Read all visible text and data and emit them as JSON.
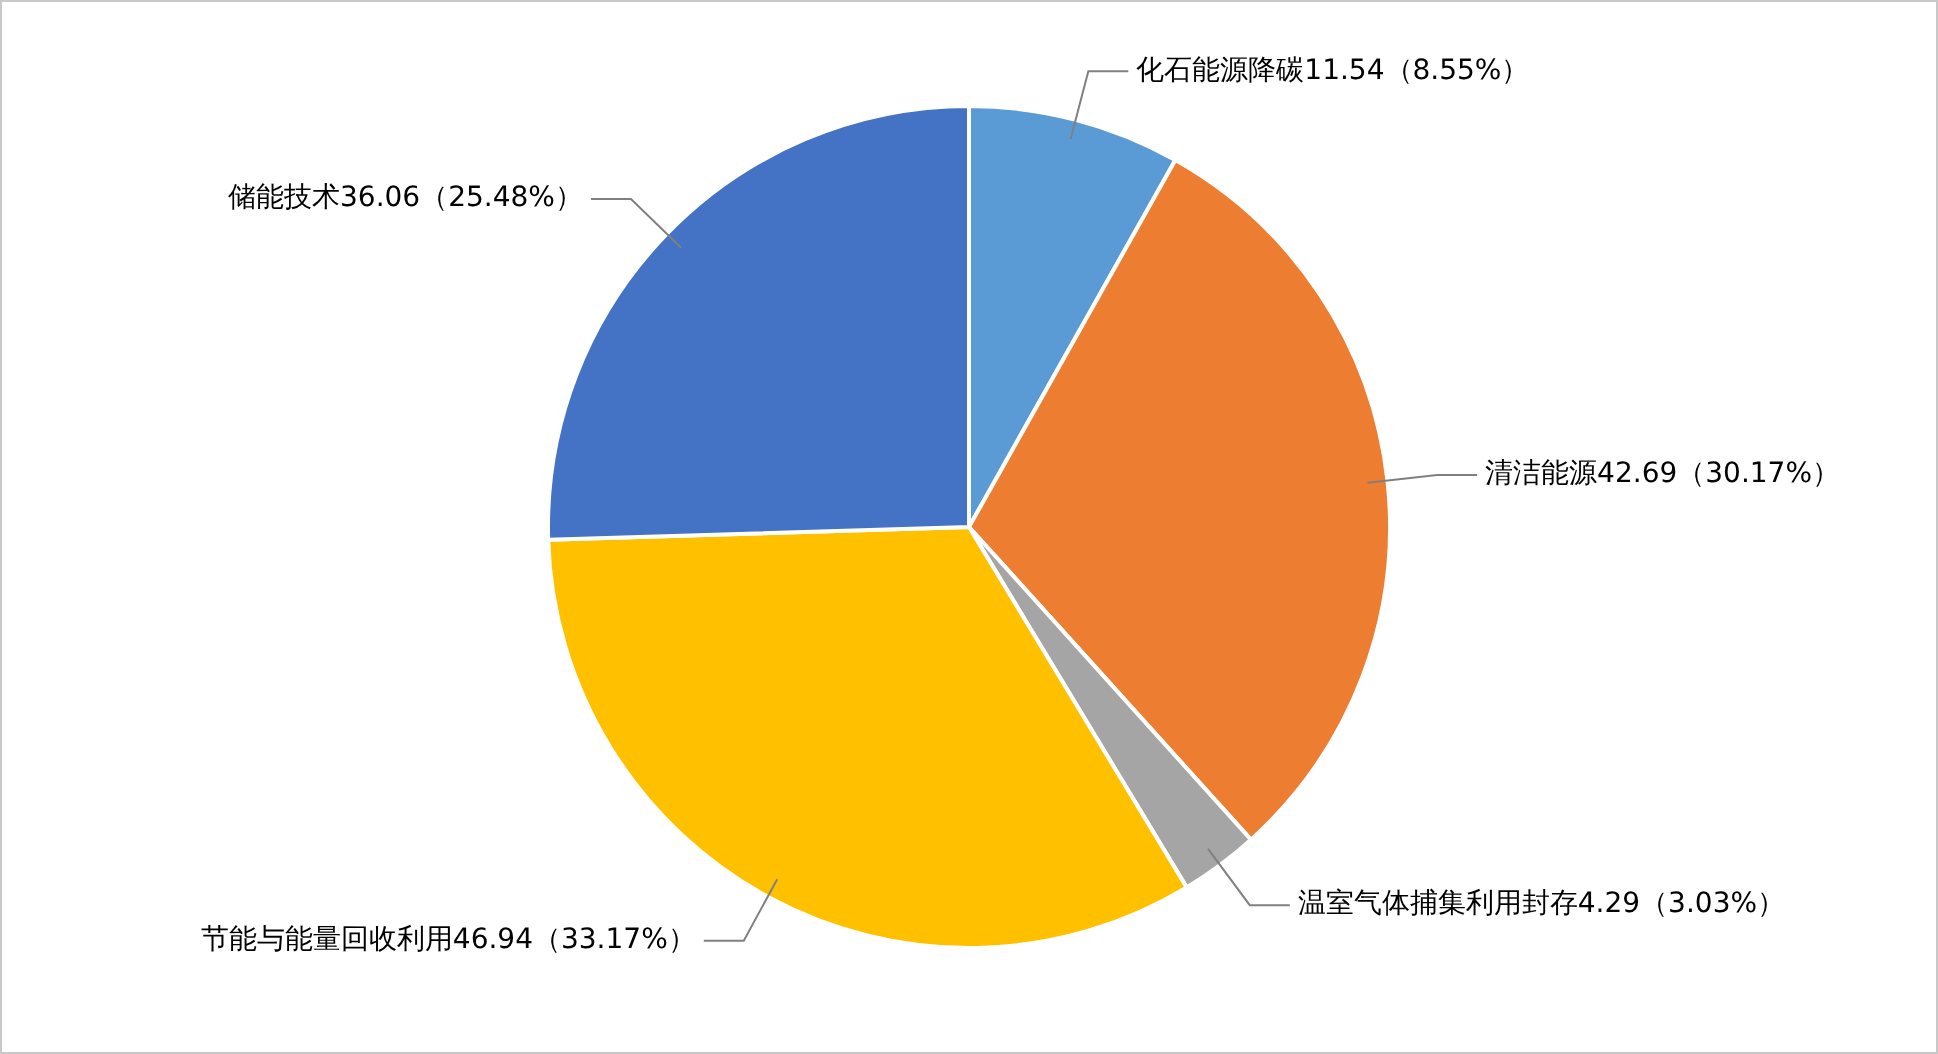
{
  "chart_data": {
    "type": "pie",
    "categories": [
      "化石能源降碳",
      "清洁能源",
      "温室气体捕集利用封存",
      "节能与能量回收利用",
      "储能技术"
    ],
    "values": [
      11.54,
      42.69,
      4.29,
      46.94,
      36.06
    ],
    "value_labels": [
      "11.54（8.55%）",
      "42.69（30.17%）",
      "4.29（3.03%）",
      "46.94（33.17%）",
      "36.06（25.48%）"
    ],
    "colors": [
      "#5b9bd5",
      "#ed7d31",
      "#a5a5a5",
      "#ffc000",
      "#4472c4"
    ],
    "legend": false
  }
}
